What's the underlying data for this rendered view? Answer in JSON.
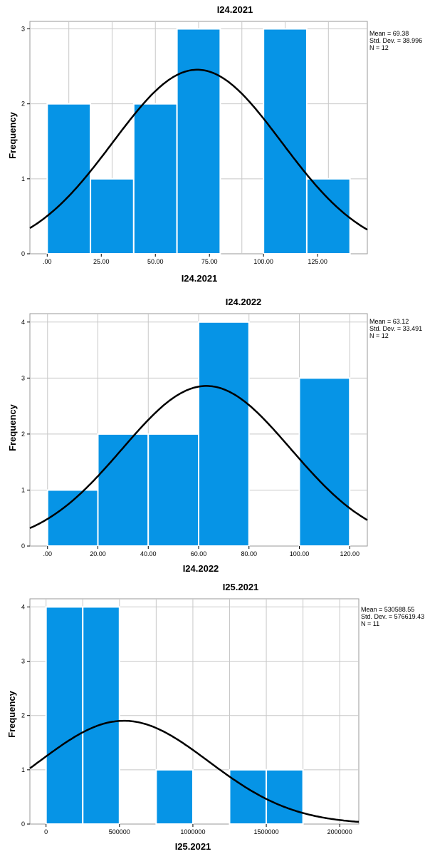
{
  "chart_data": [
    {
      "type": "bar",
      "title": "I24.2021",
      "xlabel": "I24.2021",
      "ylabel": "Frequency",
      "bins": [
        {
          "from": 0,
          "to": 20,
          "count": 2
        },
        {
          "from": 20,
          "to": 40,
          "count": 1
        },
        {
          "from": 40,
          "to": 60,
          "count": 2
        },
        {
          "from": 60,
          "to": 80,
          "count": 3
        },
        {
          "from": 100,
          "to": 120,
          "count": 3
        },
        {
          "from": 120,
          "to": 140,
          "count": 1
        }
      ],
      "xlim": [
        -8,
        148
      ],
      "ylim": [
        0,
        3.1
      ],
      "x_ticks": [
        0,
        25,
        50,
        75,
        100,
        125
      ],
      "x_tick_labels": [
        ".00",
        "25.00",
        "50.00",
        "75.00",
        "100.00",
        "125.00"
      ],
      "y_ticks": [
        0,
        1,
        2,
        3
      ],
      "y_tick_labels": [
        "0",
        "1",
        "2",
        "3"
      ],
      "x_gridlines": [
        10,
        30,
        50,
        70,
        90,
        110,
        130
      ],
      "grid": true,
      "normal_curve": {
        "mean": 69.38,
        "sd": 38.996,
        "n": 12,
        "bin_width": 20
      },
      "stats_text": [
        "Mean = 69.38",
        "Std. Dev. = 38.996",
        "N = 12"
      ],
      "bar_color": "#0694e6",
      "curve_color": "#000000"
    },
    {
      "type": "bar",
      "title": "I24.2022",
      "xlabel": "I24.2022",
      "ylabel": "Frequency",
      "bins": [
        {
          "from": 0,
          "to": 20,
          "count": 1
        },
        {
          "from": 20,
          "to": 40,
          "count": 2
        },
        {
          "from": 40,
          "to": 60,
          "count": 2
        },
        {
          "from": 60,
          "to": 80,
          "count": 4
        },
        {
          "from": 100,
          "to": 120,
          "count": 3
        }
      ],
      "xlim": [
        -7,
        127
      ],
      "ylim": [
        0,
        4.15
      ],
      "x_ticks": [
        0,
        20,
        40,
        60,
        80,
        100,
        120
      ],
      "x_tick_labels": [
        ".00",
        "20.00",
        "40.00",
        "60.00",
        "80.00",
        "100.00",
        "120.00"
      ],
      "y_ticks": [
        0,
        1,
        2,
        3,
        4
      ],
      "y_tick_labels": [
        "0",
        "1",
        "2",
        "3",
        "4"
      ],
      "x_gridlines": [
        0,
        20,
        40,
        60,
        80,
        100,
        120
      ],
      "grid": true,
      "normal_curve": {
        "mean": 63.12,
        "sd": 33.491,
        "n": 12,
        "bin_width": 20
      },
      "stats_text": [
        "Mean = 63.12",
        "Std. Dev. = 33.491",
        "N = 12"
      ],
      "bar_color": "#0694e6",
      "curve_color": "#000000"
    },
    {
      "type": "bar",
      "title": "I25.2021",
      "xlabel": "I25.2021",
      "ylabel": "Frequency",
      "bins": [
        {
          "from": 0,
          "to": 250000,
          "count": 4
        },
        {
          "from": 250000,
          "to": 500000,
          "count": 4
        },
        {
          "from": 750000,
          "to": 1000000,
          "count": 1
        },
        {
          "from": 1250000,
          "to": 1500000,
          "count": 1
        },
        {
          "from": 1500000,
          "to": 1750000,
          "count": 1
        }
      ],
      "xlim": [
        -110000,
        2130000
      ],
      "ylim": [
        0,
        4.15
      ],
      "x_ticks": [
        0,
        500000,
        1000000,
        1500000,
        2000000
      ],
      "x_tick_labels": [
        "0",
        "500000",
        "1000000",
        "1500000",
        "2000000"
      ],
      "y_ticks": [
        0,
        1,
        2,
        3,
        4
      ],
      "y_tick_labels": [
        "0",
        "1",
        "2",
        "3",
        "4"
      ],
      "x_gridlines": [
        0,
        250000,
        500000,
        750000,
        1000000,
        1250000,
        1500000,
        1750000,
        2000000
      ],
      "grid": true,
      "normal_curve": {
        "mean": 530588.55,
        "sd": 576619.43,
        "n": 11,
        "bin_width": 250000
      },
      "stats_text": [
        "Mean = 530588.55",
        "Std. Dev. = 576619.43",
        "N = 11"
      ],
      "bar_color": "#0694e6",
      "curve_color": "#000000"
    }
  ]
}
